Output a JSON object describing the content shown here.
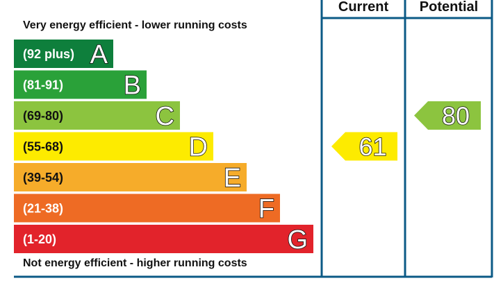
{
  "top_note": "Very energy efficient - lower running costs",
  "bottom_note": "Not energy efficient - higher running costs",
  "columns": {
    "current": "Current",
    "potential": "Potential"
  },
  "colors": {
    "frame": "#0b5a86"
  },
  "chart_data": {
    "type": "bar",
    "bands": [
      {
        "range": "(92 plus)",
        "letter": "A",
        "color": "#0e7f3c",
        "text_color": "white"
      },
      {
        "range": "(81-91)",
        "letter": "B",
        "color": "#2aa139",
        "text_color": "white"
      },
      {
        "range": "(69-80)",
        "letter": "C",
        "color": "#8cc43f",
        "text_color": "dark"
      },
      {
        "range": "(55-68)",
        "letter": "D",
        "color": "#fdeb00",
        "text_color": "dark"
      },
      {
        "range": "(39-54)",
        "letter": "E",
        "color": "#f6ac2a",
        "text_color": "dark"
      },
      {
        "range": "(21-38)",
        "letter": "F",
        "color": "#ee6b24",
        "text_color": "white"
      },
      {
        "range": "(1-20)",
        "letter": "G",
        "color": "#e2232b",
        "text_color": "white"
      }
    ],
    "current": {
      "value": 61,
      "band": "D"
    },
    "potential": {
      "value": 80,
      "band": "C"
    }
  }
}
